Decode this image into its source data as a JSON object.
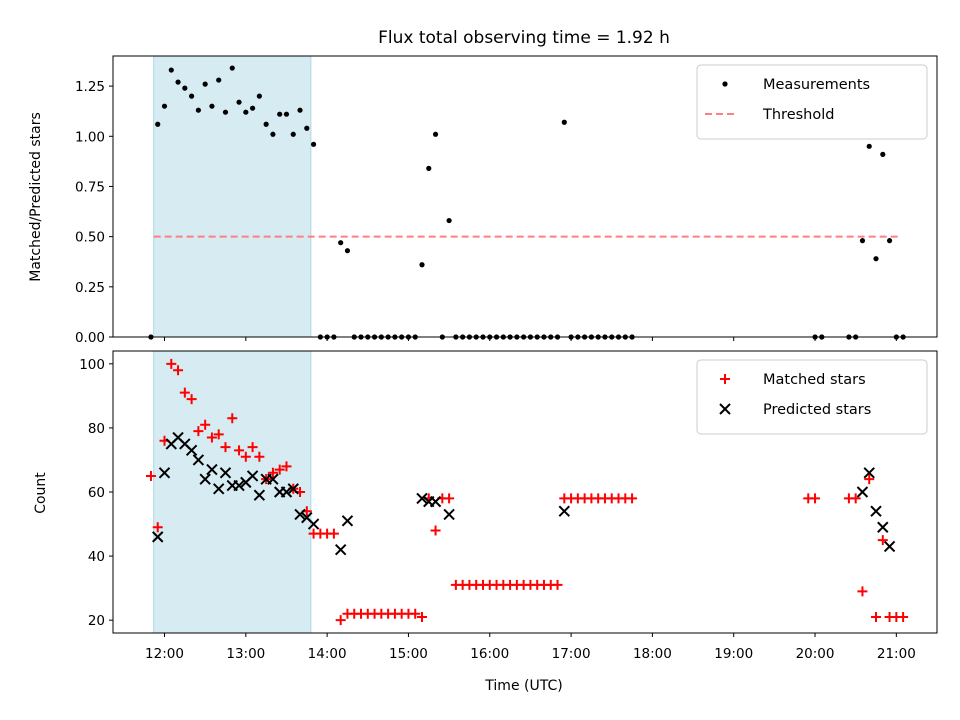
{
  "chart_data": [
    {
      "type": "scatter",
      "title": "Flux total observing time = 1.92 h",
      "xlabel": "",
      "ylabel": "Matched/Predicted stars",
      "xlim": [
        "11:22",
        "21:30"
      ],
      "ylim": [
        0,
        1.4
      ],
      "yticks": [
        "0.00",
        "0.25",
        "0.50",
        "0.75",
        "1.00",
        "1.25"
      ],
      "grid": false,
      "legend_position": "top-right",
      "shaded_interval": [
        "11:52",
        "13:48"
      ],
      "threshold": {
        "name": "Threshold",
        "value": 0.5,
        "x_range": [
          "11:52",
          "21:02"
        ],
        "color": "#ff7f7f"
      },
      "series": [
        {
          "name": "Measurements",
          "color": "#000000",
          "marker": "dot",
          "points": [
            [
              "11:50",
              0
            ],
            [
              "11:55",
              1.06
            ],
            [
              "12:00",
              1.15
            ],
            [
              "12:05",
              1.33
            ],
            [
              "12:10",
              1.27
            ],
            [
              "12:15",
              1.24
            ],
            [
              "12:20",
              1.2
            ],
            [
              "12:25",
              1.13
            ],
            [
              "12:30",
              1.26
            ],
            [
              "12:35",
              1.15
            ],
            [
              "12:40",
              1.28
            ],
            [
              "12:45",
              1.12
            ],
            [
              "12:50",
              1.34
            ],
            [
              "12:55",
              1.17
            ],
            [
              "13:00",
              1.12
            ],
            [
              "13:05",
              1.14
            ],
            [
              "13:10",
              1.2
            ],
            [
              "13:15",
              1.06
            ],
            [
              "13:20",
              1.01
            ],
            [
              "13:25",
              1.11
            ],
            [
              "13:30",
              1.11
            ],
            [
              "13:35",
              1.01
            ],
            [
              "13:40",
              1.13
            ],
            [
              "13:45",
              1.04
            ],
            [
              "13:50",
              0.96
            ],
            [
              "13:55",
              0
            ],
            [
              "14:00",
              0
            ],
            [
              "14:05",
              0
            ],
            [
              "14:10",
              0.47
            ],
            [
              "14:15",
              0.43
            ],
            [
              "14:20",
              0
            ],
            [
              "14:25",
              0
            ],
            [
              "14:30",
              0
            ],
            [
              "14:35",
              0
            ],
            [
              "14:40",
              0
            ],
            [
              "14:45",
              0
            ],
            [
              "14:50",
              0
            ],
            [
              "14:55",
              0
            ],
            [
              "15:00",
              0
            ],
            [
              "15:05",
              0
            ],
            [
              "15:10",
              0.36
            ],
            [
              "15:15",
              0.84
            ],
            [
              "15:20",
              1.01
            ],
            [
              "15:25",
              0
            ],
            [
              "15:30",
              0.58
            ],
            [
              "15:35",
              0
            ],
            [
              "15:40",
              0
            ],
            [
              "15:45",
              0
            ],
            [
              "15:50",
              0
            ],
            [
              "15:55",
              0
            ],
            [
              "16:00",
              0
            ],
            [
              "16:05",
              0
            ],
            [
              "16:10",
              0
            ],
            [
              "16:15",
              0
            ],
            [
              "16:20",
              0
            ],
            [
              "16:25",
              0
            ],
            [
              "16:30",
              0
            ],
            [
              "16:35",
              0
            ],
            [
              "16:40",
              0
            ],
            [
              "16:45",
              0
            ],
            [
              "16:50",
              0
            ],
            [
              "16:55",
              1.07
            ],
            [
              "17:00",
              0
            ],
            [
              "17:05",
              0
            ],
            [
              "17:10",
              0
            ],
            [
              "17:15",
              0
            ],
            [
              "17:20",
              0
            ],
            [
              "17:25",
              0
            ],
            [
              "17:30",
              0
            ],
            [
              "17:35",
              0
            ],
            [
              "17:40",
              0
            ],
            [
              "17:45",
              0
            ],
            [
              "20:00",
              0
            ],
            [
              "20:05",
              0
            ],
            [
              "20:25",
              0
            ],
            [
              "20:30",
              0
            ],
            [
              "20:35",
              0.48
            ],
            [
              "20:40",
              0.95
            ],
            [
              "20:45",
              0.39
            ],
            [
              "20:50",
              0.91
            ],
            [
              "20:55",
              0.48
            ],
            [
              "21:00",
              0
            ],
            [
              "21:05",
              0
            ]
          ]
        }
      ]
    },
    {
      "type": "scatter",
      "title": "",
      "xlabel": "Time (UTC)",
      "ylabel": "Count",
      "xlim": [
        "11:22",
        "21:30"
      ],
      "xticks": [
        "12:00",
        "13:00",
        "14:00",
        "15:00",
        "16:00",
        "17:00",
        "18:00",
        "19:00",
        "20:00",
        "21:00"
      ],
      "ylim": [
        16,
        104
      ],
      "yticks": [
        "20",
        "40",
        "60",
        "80",
        "100"
      ],
      "grid": false,
      "legend_position": "top-right",
      "shaded_interval": [
        "11:52",
        "13:48"
      ],
      "series": [
        {
          "name": "Matched stars",
          "color": "#ff0000",
          "marker": "plus",
          "points": [
            [
              "11:50",
              65
            ],
            [
              "11:55",
              49
            ],
            [
              "12:00",
              76
            ],
            [
              "12:05",
              100
            ],
            [
              "12:10",
              98
            ],
            [
              "12:15",
              91
            ],
            [
              "12:20",
              89
            ],
            [
              "12:25",
              79
            ],
            [
              "12:30",
              81
            ],
            [
              "12:35",
              77
            ],
            [
              "12:40",
              78
            ],
            [
              "12:45",
              74
            ],
            [
              "12:50",
              83
            ],
            [
              "12:55",
              73
            ],
            [
              "13:00",
              71
            ],
            [
              "13:05",
              74
            ],
            [
              "13:10",
              71
            ],
            [
              "13:15",
              64
            ],
            [
              "13:20",
              66
            ],
            [
              "13:25",
              67
            ],
            [
              "13:30",
              68
            ],
            [
              "13:35",
              61
            ],
            [
              "13:40",
              60
            ],
            [
              "13:45",
              54
            ],
            [
              "13:50",
              47
            ],
            [
              "13:55",
              47
            ],
            [
              "14:00",
              47
            ],
            [
              "14:05",
              47
            ],
            [
              "14:10",
              20
            ],
            [
              "14:15",
              22
            ],
            [
              "14:20",
              22
            ],
            [
              "14:25",
              22
            ],
            [
              "14:30",
              22
            ],
            [
              "14:35",
              22
            ],
            [
              "14:40",
              22
            ],
            [
              "14:45",
              22
            ],
            [
              "14:50",
              22
            ],
            [
              "14:55",
              22
            ],
            [
              "15:00",
              22
            ],
            [
              "15:05",
              22
            ],
            [
              "15:10",
              21
            ],
            [
              "15:15",
              58
            ],
            [
              "15:20",
              48
            ],
            [
              "15:25",
              58
            ],
            [
              "15:30",
              58
            ],
            [
              "15:35",
              31
            ],
            [
              "15:40",
              31
            ],
            [
              "15:45",
              31
            ],
            [
              "15:50",
              31
            ],
            [
              "15:55",
              31
            ],
            [
              "16:00",
              31
            ],
            [
              "16:05",
              31
            ],
            [
              "16:10",
              31
            ],
            [
              "16:15",
              31
            ],
            [
              "16:20",
              31
            ],
            [
              "16:25",
              31
            ],
            [
              "16:30",
              31
            ],
            [
              "16:35",
              31
            ],
            [
              "16:40",
              31
            ],
            [
              "16:45",
              31
            ],
            [
              "16:50",
              31
            ],
            [
              "16:55",
              58
            ],
            [
              "17:00",
              58
            ],
            [
              "17:05",
              58
            ],
            [
              "17:10",
              58
            ],
            [
              "17:15",
              58
            ],
            [
              "17:20",
              58
            ],
            [
              "17:25",
              58
            ],
            [
              "17:30",
              58
            ],
            [
              "17:35",
              58
            ],
            [
              "17:40",
              58
            ],
            [
              "17:45",
              58
            ],
            [
              "19:55",
              58
            ],
            [
              "20:00",
              58
            ],
            [
              "20:25",
              58
            ],
            [
              "20:30",
              58
            ],
            [
              "20:35",
              29
            ],
            [
              "20:40",
              64
            ],
            [
              "20:45",
              21
            ],
            [
              "20:50",
              45
            ],
            [
              "20:55",
              21
            ],
            [
              "21:00",
              21
            ],
            [
              "21:05",
              21
            ]
          ]
        },
        {
          "name": "Predicted stars",
          "color": "#000000",
          "marker": "x",
          "points": [
            [
              "11:55",
              46
            ],
            [
              "12:00",
              66
            ],
            [
              "12:05",
              75
            ],
            [
              "12:10",
              77
            ],
            [
              "12:15",
              75
            ],
            [
              "12:20",
              73
            ],
            [
              "12:25",
              70
            ],
            [
              "12:30",
              64
            ],
            [
              "12:35",
              67
            ],
            [
              "12:40",
              61
            ],
            [
              "12:45",
              66
            ],
            [
              "12:50",
              62
            ],
            [
              "12:55",
              62
            ],
            [
              "13:00",
              63
            ],
            [
              "13:05",
              65
            ],
            [
              "13:10",
              59
            ],
            [
              "13:15",
              64
            ],
            [
              "13:20",
              64
            ],
            [
              "13:25",
              60
            ],
            [
              "13:30",
              60
            ],
            [
              "13:35",
              61
            ],
            [
              "13:40",
              53
            ],
            [
              "13:45",
              52
            ],
            [
              "13:50",
              50
            ],
            [
              "14:10",
              42
            ],
            [
              "14:15",
              51
            ],
            [
              "15:10",
              58
            ],
            [
              "15:15",
              57
            ],
            [
              "15:20",
              57
            ],
            [
              "15:30",
              53
            ],
            [
              "16:55",
              54
            ],
            [
              "20:35",
              60
            ],
            [
              "20:40",
              66
            ],
            [
              "20:45",
              54
            ],
            [
              "20:50",
              49
            ],
            [
              "20:55",
              43
            ]
          ]
        }
      ]
    }
  ]
}
